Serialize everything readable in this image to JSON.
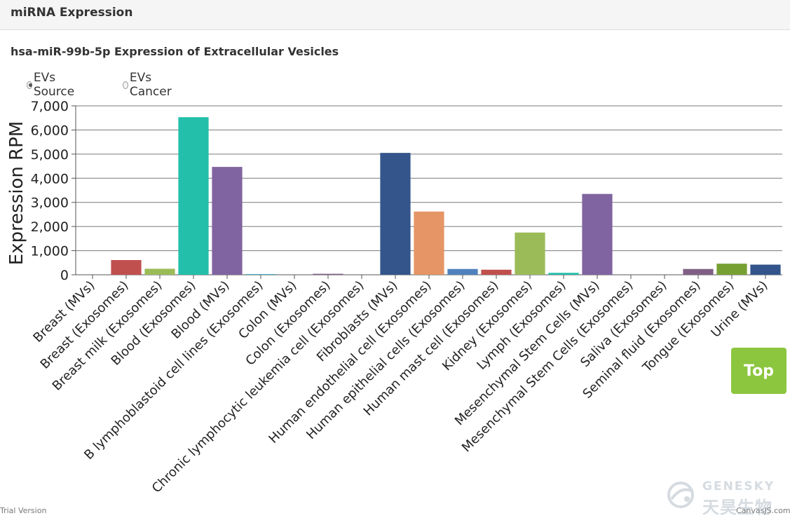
{
  "panel": {
    "title": "miRNA Expression"
  },
  "chart_title": "hsa-miR-99b-5p Expression of Extracellular Vesicles",
  "radio": {
    "options": [
      {
        "label": "EVs Source",
        "checked": true
      },
      {
        "label": "EVs Cancer",
        "checked": false
      }
    ]
  },
  "top_button": {
    "label": "Top"
  },
  "footer": {
    "trial": "Trial Version",
    "credit": "CanvasJS.com"
  },
  "watermark": {
    "brand": "GENESKY",
    "chinese": "天昊生物"
  },
  "chart_data": {
    "type": "bar",
    "title": "hsa-miR-99b-5p Expression of Extracellular Vesicles",
    "xlabel": "",
    "ylabel": "Expression RPM",
    "ylim": [
      0,
      7000
    ],
    "yticks": [
      0,
      1000,
      2000,
      3000,
      4000,
      5000,
      6000,
      7000
    ],
    "ytick_labels": [
      "0",
      "1,000",
      "2,000",
      "3,000",
      "4,000",
      "5,000",
      "6,000",
      "7,000"
    ],
    "grid": true,
    "legend": "none",
    "categories": [
      "Breast (MVs)",
      "Breast (Exosomes)",
      "Breast milk (Exosomes)",
      "Blood (Exosomes)",
      "Blood (MVs)",
      "B lymphoblastoid cell lines (Exosomes)",
      "Colon (MVs)",
      "Colon (Exosomes)",
      "Chronic lymphocytic leukemia cell (Exosomes)",
      "Fibroblasts (MVs)",
      "Human endothelial cell (Exosomes)",
      "Human epithelial cells (Exosomes)",
      "Human mast cell (Exosomes)",
      "Kidney (Exosomes)",
      "Lymph (Exosomes)",
      "Mesenchymal Stem Cells (MVs)",
      "Mesenchymal Stem Cells (Exosomes)",
      "Saliva (Exosomes)",
      "Seminal fluid (Exosomes)",
      "Tongue (Exosomes)",
      "Urine (MVs)"
    ],
    "values": [
      0,
      610,
      250,
      6530,
      4470,
      30,
      0,
      40,
      0,
      5050,
      2620,
      240,
      210,
      1750,
      80,
      3350,
      0,
      0,
      240,
      460,
      420
    ],
    "colors": [
      "#4f81bc",
      "#c0504e",
      "#9bbb58",
      "#23bfaa",
      "#8064a1",
      "#4aacc5",
      "#f79647",
      "#7f6084",
      "#77a033",
      "#33558b",
      "#e59566",
      "#4f81bc",
      "#c0504e",
      "#9bbb58",
      "#23bfaa",
      "#8064a1",
      "#4aacc5",
      "#f79647",
      "#7f6084",
      "#77a033",
      "#33558b"
    ]
  }
}
